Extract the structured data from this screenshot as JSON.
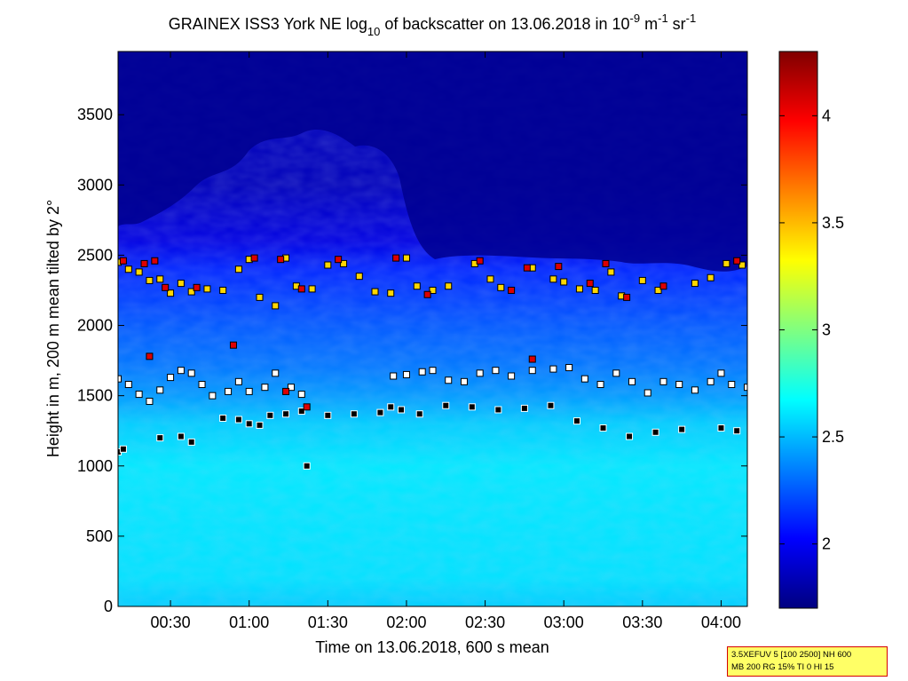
{
  "chart_data": {
    "type": "heatmap",
    "title": {
      "main": "GRAINEX ISS3 York NE log",
      "sub1": "10",
      "mid1": " of backscatter on 13.06.2018 in 10",
      "sup1": "-9",
      "mid2": " m",
      "sup2": "-1",
      "mid3": " sr",
      "sup3": "-1"
    },
    "xlabel": "Time on 13.06.2018, 600 s mean",
    "ylabel": "Height in m, 200 m mean tilted by 2°",
    "x_range": [
      "00:10",
      "04:10"
    ],
    "x_ticks": [
      "00:30",
      "01:00",
      "01:30",
      "02:00",
      "02:30",
      "03:00",
      "03:30",
      "04:00"
    ],
    "ylim": [
      0,
      3950
    ],
    "y_ticks": [
      "0",
      "500",
      "1000",
      "1500",
      "2000",
      "2500",
      "3000",
      "3500"
    ],
    "colorbar": {
      "range": [
        1.7,
        4.3
      ],
      "ticks": [
        "2",
        "2.5",
        "3",
        "3.5",
        "4"
      ],
      "colormap": "jet"
    },
    "background_profile": [
      {
        "height": 0,
        "value": 2.55
      },
      {
        "height": 200,
        "value": 2.6
      },
      {
        "height": 1000,
        "value": 2.62
      },
      {
        "height": 1300,
        "value": 2.55
      },
      {
        "height": 1500,
        "value": 2.42
      },
      {
        "height": 1700,
        "value": 2.33
      },
      {
        "height": 2000,
        "value": 2.25
      },
      {
        "height": 2400,
        "value": 2.12
      },
      {
        "height": 2600,
        "value": 1.95
      },
      {
        "height": 3000,
        "value": 1.85
      },
      {
        "height": 3950,
        "value": 1.85
      }
    ],
    "layers": [
      {
        "name": "",
        "marker_color": "#000000",
        "points": [
          {
            "t": "00:10",
            "h": 1100
          },
          {
            "t": "00:12",
            "h": 1120
          },
          {
            "t": "00:26",
            "h": 1200
          },
          {
            "t": "00:34",
            "h": 1210
          },
          {
            "t": "00:38",
            "h": 1170
          },
          {
            "t": "00:50",
            "h": 1340
          },
          {
            "t": "00:56",
            "h": 1330
          },
          {
            "t": "01:00",
            "h": 1300
          },
          {
            "t": "01:04",
            "h": 1290
          },
          {
            "t": "01:08",
            "h": 1360
          },
          {
            "t": "01:14",
            "h": 1370
          },
          {
            "t": "01:20",
            "h": 1390
          },
          {
            "t": "01:22",
            "h": 1000
          },
          {
            "t": "01:30",
            "h": 1360
          },
          {
            "t": "01:40",
            "h": 1370
          },
          {
            "t": "01:50",
            "h": 1380
          },
          {
            "t": "01:54",
            "h": 1420
          },
          {
            "t": "01:58",
            "h": 1400
          },
          {
            "t": "02:05",
            "h": 1370
          },
          {
            "t": "02:15",
            "h": 1430
          },
          {
            "t": "02:25",
            "h": 1420
          },
          {
            "t": "02:35",
            "h": 1400
          },
          {
            "t": "02:45",
            "h": 1410
          },
          {
            "t": "02:55",
            "h": 1430
          },
          {
            "t": "03:05",
            "h": 1320
          },
          {
            "t": "03:15",
            "h": 1270
          },
          {
            "t": "03:25",
            "h": 1210
          },
          {
            "t": "03:35",
            "h": 1240
          },
          {
            "t": "03:45",
            "h": 1260
          },
          {
            "t": "04:00",
            "h": 1270
          },
          {
            "t": "04:06",
            "h": 1250
          }
        ]
      },
      {
        "name": "",
        "marker_color": "#ffffff",
        "points": [
          {
            "t": "00:10",
            "h": 1620
          },
          {
            "t": "00:14",
            "h": 1580
          },
          {
            "t": "00:18",
            "h": 1510
          },
          {
            "t": "00:22",
            "h": 1460
          },
          {
            "t": "00:26",
            "h": 1540
          },
          {
            "t": "00:30",
            "h": 1630
          },
          {
            "t": "00:34",
            "h": 1680
          },
          {
            "t": "00:38",
            "h": 1660
          },
          {
            "t": "00:42",
            "h": 1580
          },
          {
            "t": "00:46",
            "h": 1500
          },
          {
            "t": "00:52",
            "h": 1530
          },
          {
            "t": "00:56",
            "h": 1600
          },
          {
            "t": "01:00",
            "h": 1530
          },
          {
            "t": "01:06",
            "h": 1560
          },
          {
            "t": "01:10",
            "h": 1660
          },
          {
            "t": "01:16",
            "h": 1560
          },
          {
            "t": "01:20",
            "h": 1510
          },
          {
            "t": "01:55",
            "h": 1640
          },
          {
            "t": "02:00",
            "h": 1650
          },
          {
            "t": "02:06",
            "h": 1670
          },
          {
            "t": "02:10",
            "h": 1680
          },
          {
            "t": "02:16",
            "h": 1610
          },
          {
            "t": "02:22",
            "h": 1600
          },
          {
            "t": "02:28",
            "h": 1660
          },
          {
            "t": "02:34",
            "h": 1680
          },
          {
            "t": "02:40",
            "h": 1640
          },
          {
            "t": "02:48",
            "h": 1680
          },
          {
            "t": "02:56",
            "h": 1690
          },
          {
            "t": "03:02",
            "h": 1700
          },
          {
            "t": "03:08",
            "h": 1620
          },
          {
            "t": "03:14",
            "h": 1580
          },
          {
            "t": "03:20",
            "h": 1660
          },
          {
            "t": "03:26",
            "h": 1600
          },
          {
            "t": "03:32",
            "h": 1520
          },
          {
            "t": "03:38",
            "h": 1600
          },
          {
            "t": "03:44",
            "h": 1580
          },
          {
            "t": "03:50",
            "h": 1540
          },
          {
            "t": "03:56",
            "h": 1600
          },
          {
            "t": "04:00",
            "h": 1660
          },
          {
            "t": "04:04",
            "h": 1580
          },
          {
            "t": "04:10",
            "h": 1560
          }
        ]
      },
      {
        "name": "",
        "marker_color": "#ffd700",
        "points": [
          {
            "t": "00:10",
            "h": 2450
          },
          {
            "t": "00:14",
            "h": 2400
          },
          {
            "t": "00:18",
            "h": 2380
          },
          {
            "t": "00:22",
            "h": 2320
          },
          {
            "t": "00:26",
            "h": 2330
          },
          {
            "t": "00:30",
            "h": 2230
          },
          {
            "t": "00:34",
            "h": 2300
          },
          {
            "t": "00:38",
            "h": 2240
          },
          {
            "t": "00:44",
            "h": 2260
          },
          {
            "t": "00:50",
            "h": 2250
          },
          {
            "t": "00:56",
            "h": 2400
          },
          {
            "t": "01:00",
            "h": 2470
          },
          {
            "t": "01:04",
            "h": 2200
          },
          {
            "t": "01:10",
            "h": 2140
          },
          {
            "t": "01:14",
            "h": 2480
          },
          {
            "t": "01:18",
            "h": 2280
          },
          {
            "t": "01:24",
            "h": 2260
          },
          {
            "t": "01:30",
            "h": 2430
          },
          {
            "t": "01:36",
            "h": 2440
          },
          {
            "t": "01:42",
            "h": 2350
          },
          {
            "t": "01:48",
            "h": 2240
          },
          {
            "t": "01:54",
            "h": 2230
          },
          {
            "t": "02:00",
            "h": 2480
          },
          {
            "t": "02:04",
            "h": 2280
          },
          {
            "t": "02:10",
            "h": 2250
          },
          {
            "t": "02:16",
            "h": 2280
          },
          {
            "t": "02:26",
            "h": 2440
          },
          {
            "t": "02:32",
            "h": 2330
          },
          {
            "t": "02:36",
            "h": 2270
          },
          {
            "t": "02:48",
            "h": 2410
          },
          {
            "t": "02:56",
            "h": 2330
          },
          {
            "t": "03:00",
            "h": 2310
          },
          {
            "t": "03:06",
            "h": 2260
          },
          {
            "t": "03:12",
            "h": 2250
          },
          {
            "t": "03:18",
            "h": 2380
          },
          {
            "t": "03:22",
            "h": 2210
          },
          {
            "t": "03:30",
            "h": 2320
          },
          {
            "t": "03:36",
            "h": 2250
          },
          {
            "t": "03:50",
            "h": 2300
          },
          {
            "t": "03:56",
            "h": 2340
          },
          {
            "t": "04:02",
            "h": 2440
          },
          {
            "t": "04:08",
            "h": 2430
          }
        ]
      },
      {
        "name": "",
        "marker_color": "#dd0000",
        "points": [
          {
            "t": "00:12",
            "h": 2460
          },
          {
            "t": "00:20",
            "h": 2440
          },
          {
            "t": "00:24",
            "h": 2460
          },
          {
            "t": "00:28",
            "h": 2270
          },
          {
            "t": "00:40",
            "h": 2270
          },
          {
            "t": "01:02",
            "h": 2480
          },
          {
            "t": "01:12",
            "h": 2470
          },
          {
            "t": "01:20",
            "h": 2260
          },
          {
            "t": "01:34",
            "h": 2470
          },
          {
            "t": "01:56",
            "h": 2480
          },
          {
            "t": "02:08",
            "h": 2220
          },
          {
            "t": "02:28",
            "h": 2460
          },
          {
            "t": "02:40",
            "h": 2250
          },
          {
            "t": "02:46",
            "h": 2410
          },
          {
            "t": "02:58",
            "h": 2420
          },
          {
            "t": "03:10",
            "h": 2300
          },
          {
            "t": "03:16",
            "h": 2440
          },
          {
            "t": "03:24",
            "h": 2200
          },
          {
            "t": "03:38",
            "h": 2280
          },
          {
            "t": "04:06",
            "h": 2460
          },
          {
            "t": "00:22",
            "h": 1780
          },
          {
            "t": "00:54",
            "h": 1860
          },
          {
            "t": "01:14",
            "h": 1530
          },
          {
            "t": "01:22",
            "h": 1420
          },
          {
            "t": "02:48",
            "h": 1760
          }
        ]
      }
    ]
  },
  "info_box": {
    "line1": "3.5XEFUV 5 [100 2500] NH 600",
    "line2": "MB 200 RG 15% TI 0 HI 15"
  }
}
